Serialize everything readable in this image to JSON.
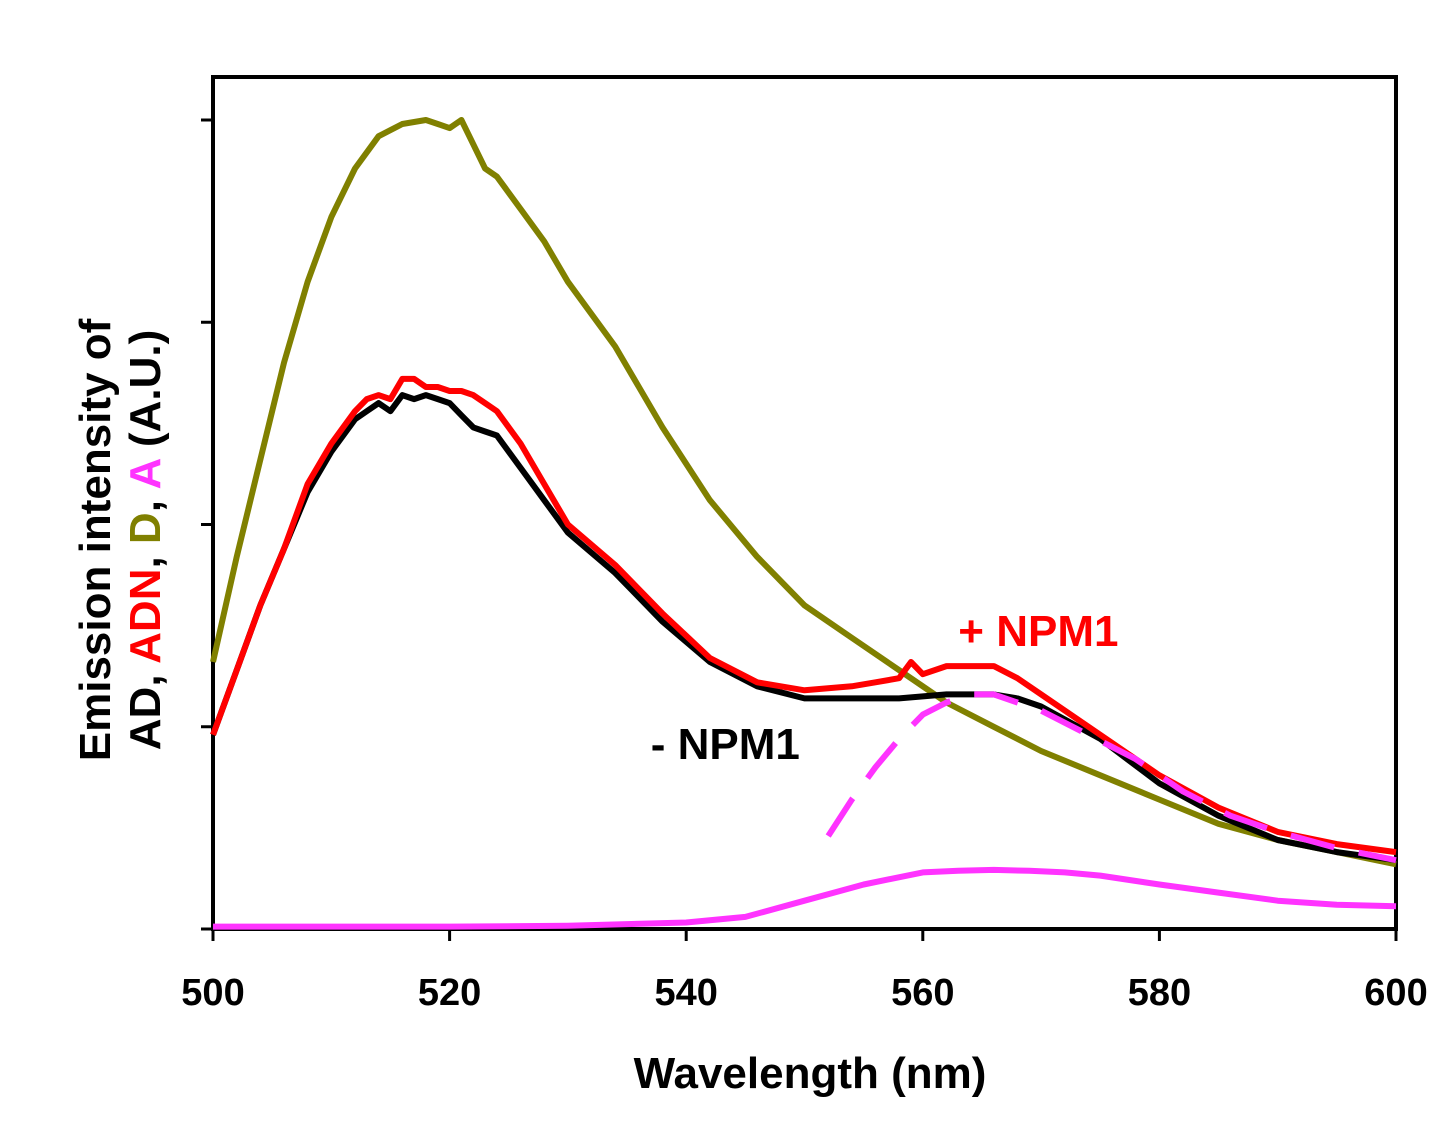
{
  "chart_data": {
    "type": "line",
    "xlabel": "Wavelength (nm)",
    "ylabel_line1": "Emission intensity of",
    "ylabel_line2_parts": [
      {
        "text": "AD, ",
        "color": "#000000"
      },
      {
        "text": "ADN",
        "color": "#ff0000"
      },
      {
        "text": ", ",
        "color": "#000000"
      },
      {
        "text": "D",
        "color": "#808000"
      },
      {
        "text": ", ",
        "color": "#000000"
      },
      {
        "text": "A",
        "color": "#ff33ff"
      },
      {
        "text": " (A.U.)",
        "color": "#000000"
      }
    ],
    "xlim": [
      500,
      600
    ],
    "ylim": [
      0,
      100
    ],
    "xticks": [
      500,
      520,
      540,
      560,
      580,
      600
    ],
    "yticks": [
      0,
      25,
      50,
      75,
      100
    ],
    "grid": false,
    "series": [
      {
        "key": "D",
        "color": "#808000",
        "style": "solid",
        "x": [
          500,
          502,
          504,
          506,
          508,
          510,
          512,
          514,
          516,
          518,
          519,
          520,
          521,
          522,
          523,
          524,
          526,
          528,
          530,
          534,
          538,
          542,
          546,
          550,
          554,
          558,
          562,
          566,
          570,
          575,
          580,
          585,
          590,
          595,
          600
        ],
        "y": [
          33,
          46,
          58,
          70,
          80,
          88,
          94,
          98,
          99.5,
          100,
          99.5,
          99,
          100,
          97,
          94,
          93,
          89,
          85,
          80,
          72,
          62,
          53,
          46,
          40,
          36,
          32,
          28,
          25,
          22,
          19,
          16,
          13,
          11,
          9.5,
          8
        ]
      },
      {
        "key": "AD",
        "color": "#000000",
        "style": "solid",
        "label": "- NPM1",
        "x": [
          500,
          502,
          504,
          506,
          508,
          510,
          512,
          513,
          514,
          515,
          516,
          517,
          518,
          519,
          520,
          521,
          522,
          523,
          524,
          526,
          528,
          530,
          534,
          538,
          542,
          546,
          550,
          554,
          558,
          562,
          564,
          566,
          568,
          570,
          575,
          580,
          585,
          590,
          595,
          600
        ],
        "y": [
          24,
          32,
          40,
          47,
          54,
          59,
          63,
          64,
          65,
          64,
          66,
          65.5,
          66,
          65.5,
          65,
          63.5,
          62,
          61.5,
          61,
          57,
          53,
          49,
          44,
          38,
          33,
          30,
          28.5,
          28.5,
          28.5,
          29,
          29,
          29,
          28.5,
          27.5,
          23.5,
          18,
          14,
          11,
          9.5,
          8.5
        ]
      },
      {
        "key": "ADN",
        "color": "#ff0000",
        "style": "solid",
        "label": "+ NPM1",
        "x": [
          500,
          502,
          504,
          506,
          508,
          510,
          512,
          513,
          514,
          515,
          516,
          517,
          518,
          519,
          520,
          521,
          522,
          523,
          524,
          526,
          528,
          530,
          534,
          538,
          542,
          546,
          550,
          554,
          556,
          558,
          559,
          560,
          562,
          564,
          566,
          568,
          570,
          575,
          580,
          585,
          590,
          595,
          600
        ],
        "y": [
          24,
          32,
          40,
          47,
          55,
          60,
          64,
          65.5,
          66,
          65.5,
          68,
          68,
          67,
          67,
          66.5,
          66.5,
          66,
          65,
          64,
          60,
          55,
          50,
          45,
          39,
          33.5,
          30.5,
          29.5,
          30,
          30.5,
          31,
          33,
          31.5,
          32.5,
          32.5,
          32.5,
          31,
          29,
          24,
          19,
          15,
          12,
          10.5,
          9.5
        ]
      },
      {
        "key": "A",
        "color": "#ff33ff",
        "style": "solid",
        "x": [
          500,
          510,
          520,
          530,
          540,
          545,
          550,
          555,
          560,
          563,
          566,
          569,
          572,
          575,
          580,
          585,
          590,
          595,
          600
        ],
        "y": [
          0.3,
          0.3,
          0.3,
          0.4,
          0.8,
          1.5,
          3.5,
          5.5,
          7,
          7.2,
          7.3,
          7.2,
          7,
          6.6,
          5.5,
          4.5,
          3.5,
          3,
          2.8
        ]
      },
      {
        "key": "ADN - AD (dashed)",
        "color": "#ff33ff",
        "style": "dashed",
        "x": [
          552,
          554,
          556,
          558,
          560,
          562,
          564,
          566,
          568,
          570,
          574,
          578,
          582,
          586,
          590,
          595,
          600
        ],
        "y": [
          11.5,
          16,
          20,
          23.5,
          26.5,
          28,
          29,
          29,
          28,
          27,
          24,
          21,
          17,
          14,
          12,
          10,
          8.5
        ]
      }
    ],
    "annotations": [
      {
        "text": "+ NPM1",
        "color": "#ff0000",
        "x": 563,
        "y": 35
      },
      {
        "text": "- NPM1",
        "color": "#000000",
        "x": 537,
        "y": 21
      }
    ]
  }
}
